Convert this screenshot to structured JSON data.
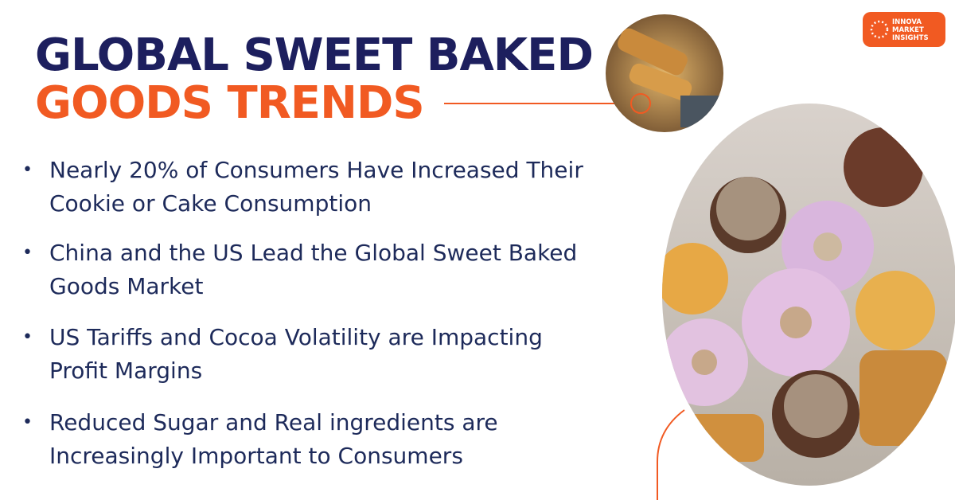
{
  "header": {
    "title_line1": "GLOBAL SWEET BAKED",
    "title_line2": "GOODS TRENDS"
  },
  "logo": {
    "lines": [
      "INNOVA",
      "MARKET",
      "INSIGHTS"
    ]
  },
  "bullets": [
    {
      "lines": [
        "Nearly 20% of Consumers Have Increased Their",
        "Cookie or Cake Consumption"
      ]
    },
    {
      "lines": [
        "China and the US Lead the Global Sweet Baked",
        "Goods Market"
      ]
    },
    {
      "lines": [
        "US Tariffs and Cocoa Volatility are Impacting",
        "Profit Margins"
      ]
    },
    {
      "lines": [
        "Reduced Sugar and Real ingredients are",
        "Increasingly Important to Consumers"
      ]
    }
  ]
}
